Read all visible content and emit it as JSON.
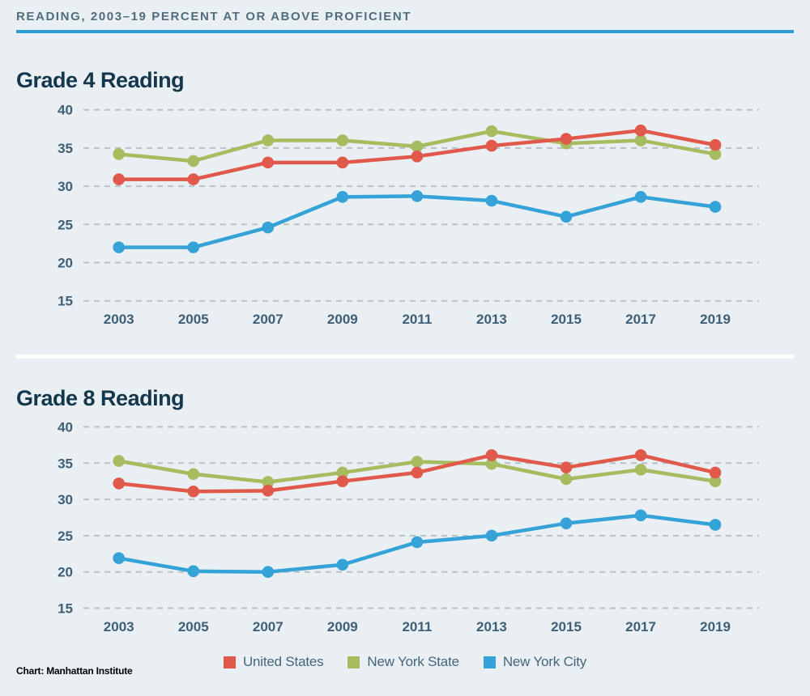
{
  "header": {
    "title": "READING, 2003–19 PERCENT AT OR ABOVE PROFICIENT",
    "rule_color": "#2e9fd6"
  },
  "footer": {
    "credit": "Chart: Manhattan Institute"
  },
  "colors": {
    "background": "#e9eff2",
    "heading": "#14374e",
    "kicker_text": "#4e6e7e",
    "axis_text": "#3e5f77",
    "gridline": "#b7c1c8",
    "united_states": "#e0594b",
    "new_york_state": "#a5bc5f",
    "new_york_city": "#35a2d8"
  },
  "legend": {
    "position": "bottom-center",
    "items": [
      {
        "label": "United States",
        "color": "#e0594b"
      },
      {
        "label": "New York State",
        "color": "#a5bc5f"
      },
      {
        "label": "New York City",
        "color": "#35a2d8"
      }
    ]
  },
  "chart_data": [
    {
      "type": "line",
      "title": "Grade 4 Reading",
      "x": [
        "2003",
        "2005",
        "2007",
        "2009",
        "2011",
        "2013",
        "2015",
        "2017",
        "2019"
      ],
      "series": [
        {
          "name": "United States",
          "color": "#e0594b",
          "values": [
            30.9,
            30.9,
            33.1,
            33.1,
            33.9,
            35.3,
            36.2,
            37.3,
            35.4
          ]
        },
        {
          "name": "New York State",
          "color": "#a5bc5f",
          "values": [
            34.2,
            33.3,
            36.0,
            36.0,
            35.2,
            37.2,
            35.6,
            36.0,
            34.2
          ]
        },
        {
          "name": "New York City",
          "color": "#35a2d8",
          "values": [
            22.0,
            22.0,
            24.6,
            28.6,
            28.7,
            28.1,
            26.0,
            28.6,
            27.3
          ]
        }
      ],
      "xlabel": "",
      "ylabel": "",
      "ylim": [
        15,
        40
      ],
      "yticks": [
        40,
        35,
        30,
        25,
        20,
        15
      ],
      "grid": true
    },
    {
      "type": "line",
      "title": "Grade 8 Reading",
      "x": [
        "2003",
        "2005",
        "2007",
        "2009",
        "2011",
        "2013",
        "2015",
        "2017",
        "2019"
      ],
      "series": [
        {
          "name": "United States",
          "color": "#e0594b",
          "values": [
            32.2,
            31.1,
            31.2,
            32.5,
            33.7,
            36.1,
            34.4,
            36.1,
            33.7
          ]
        },
        {
          "name": "New York State",
          "color": "#a5bc5f",
          "values": [
            35.3,
            33.5,
            32.4,
            33.7,
            35.2,
            34.9,
            32.8,
            34.1,
            32.5
          ]
        },
        {
          "name": "New York City",
          "color": "#35a2d8",
          "values": [
            21.9,
            20.1,
            20.0,
            21.0,
            24.1,
            25.0,
            26.7,
            27.8,
            26.5
          ]
        }
      ],
      "xlabel": "",
      "ylabel": "",
      "ylim": [
        15,
        40
      ],
      "yticks": [
        40,
        35,
        30,
        25,
        20,
        15
      ],
      "grid": true
    }
  ]
}
